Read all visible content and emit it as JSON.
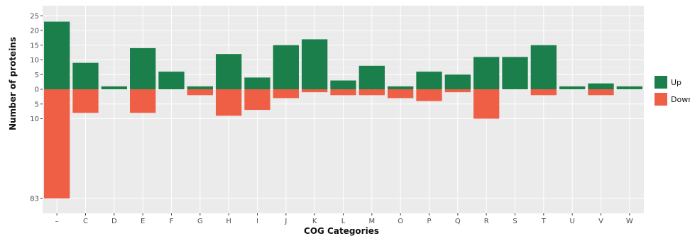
{
  "chart_data": {
    "type": "bar",
    "xlabel": "COG Categories",
    "ylabel": "Number of proteins",
    "categories": [
      "–",
      "C",
      "D",
      "E",
      "F",
      "G",
      "H",
      "I",
      "J",
      "K",
      "L",
      "M",
      "O",
      "P",
      "Q",
      "R",
      "S",
      "T",
      "U",
      "V",
      "W"
    ],
    "series": [
      {
        "name": "Up",
        "color": "#1b7f4b",
        "values": [
          23,
          9,
          1,
          14,
          6,
          1,
          12,
          4,
          15,
          17,
          3,
          8,
          1,
          6,
          5,
          11,
          11,
          15,
          1,
          2,
          1
        ]
      },
      {
        "name": "Down",
        "color": "#ee5f46",
        "values": [
          83,
          8,
          0,
          8,
          0,
          2,
          9,
          7,
          3,
          1,
          2,
          2,
          3,
          4,
          1,
          10,
          0,
          2,
          0,
          2,
          0
        ]
      }
    ],
    "y_ticks_up": [
      0,
      5,
      10,
      15,
      20,
      25
    ],
    "y_ticks_down": [
      5,
      10,
      83
    ],
    "y_axis_note": "Down direction is compressed between 10 and 83",
    "legend_position": "right",
    "grid": true,
    "panel_background": "#ebebeb",
    "grid_color": "#ffffff"
  }
}
